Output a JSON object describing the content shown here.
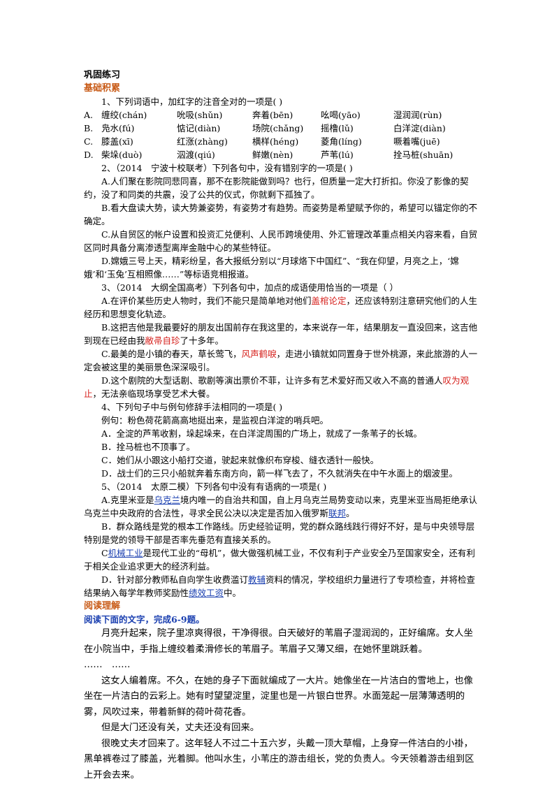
{
  "headings": {
    "consolidate": "巩固练习",
    "basic": "基础积累",
    "reading": "阅读理解",
    "reading_prompt": "阅读下面的文字，完成6-9题。"
  },
  "q1": {
    "stem": "1、下列词语中，加红字的注音全对的一项是(     )",
    "rows": [
      [
        "",
        "缠绞(chán)",
        "吮吸(shǔn)",
        "奔着(bēn)",
        "吆喝(yāo)",
        "湿润润(rùn)"
      ],
      [
        "B.",
        "凫水(fú)",
        "惦记(diàn)",
        "场院(chǎng)",
        "摇橹(lǔ)",
        "白洋淀(diàn)"
      ],
      [
        "C.",
        "膝盖(xī)",
        "红涨(zhàng)",
        "横样(héng)",
        "菱角(líng)",
        "噘着嘴(juē)"
      ],
      [
        "D.",
        "柴垛(duò)",
        "泅渡(qiú)",
        "鲜嫩(nèn)",
        "芦苇(lú)",
        "拴马桩(shuān)"
      ]
    ],
    "a_prefix": "A."
  },
  "q2": {
    "stem": "2、（2014　宁波十校联考）下列各句中，没有错别字的一项是(     )",
    "A": "A.人们聚在影院同悲同喜，那不在影院能做到吗？也行，但质量一定大打折扣。你没了影像的契约，没了和同类的共震，没了公共的仪式，你就剩下孤独了。",
    "B": "B.看大盘读大势，读大势兼姿势，有姿势才有趋势。而姿势是希望赋予你的，希望可以锚定你的不确定。",
    "C": "C.从自贸区的帐户设置和投资汇兑便利、人民币跨境使用、外汇管理改革重点相关内容来看，自贸区同时具备分离渗透型离岸金融中心的某些特征。",
    "D": "D.嫦娥三号上天，精彩纷呈，各大报纸分别以“月球烙下中国红”、“我在仰望，月亮之上，‘嫦娥’和‘玉兔’互相照像……”等标语竞相报道。"
  },
  "q3": {
    "stem": "3、（2014　大纲全国高考）下列各句中，加点的成语使用恰当的一项是（      ）",
    "A1": "A.在评价某些历史人物时，我们不能只是简单地对他们",
    "A_red": "盖棺论定",
    "A2": "，还应该特别注意研究他们的人生经历和思想变化轨迹。",
    "B1": "B.这把吉他是我最要好的朋友出国前存在我这里的，本来说存一年，结果朋友一直没回来，这吉他到现在已经由我",
    "B_red": "敝帚自珍",
    "B2": "了十多年。",
    "C1": "C.最美的是小镇的春天，草长莺飞，",
    "C_red": "风声鹤唳",
    "C2": "，走进小镇就如同置身于世外桃源，来此旅游的人一定会被这里的美丽景色深深吸引。",
    "D1": "D.这个剧院的大型话剧、歌剧等演出票价不菲，让许多有艺术爱好而又收入不高的普通人",
    "D_red": "叹为观止",
    "D2": "，无法亲临现场享受艺术大餐。"
  },
  "q4": {
    "stem": "4、下列句子中与例句修辞手法相同的一项是(      )",
    "example": "例句：粉色荷花箭高高地挺出来，是监视白洋淀的哨兵吧。",
    "A": "A．全淀的芦苇收割，垛起垛来，在白洋淀周围的广场上，就成了一条苇子的长城。",
    "B": "B．拴马桩也不顶事了。",
    "C": "C．她们从小跟这小船打交道，驶起来就像织布穿梭、缝衣透针一般快。",
    "D": "D．战士们的三只小船就奔着东南方向，箭一样飞去了，不久就消失在中午水面上的烟波里。"
  },
  "q5": {
    "stem": "5、（2014　太原二模）下列各句中没有有语病的一项是(      )",
    "A1": "A.克里米亚是",
    "A_link1": "乌克兰",
    "A2": "境内唯一的自治共和国，自上月乌克兰局势变动以来，克里米亚当局拒绝承认乌克兰中央政府的合法性，寻求全民公决以决定是否加入俄罗斯",
    "A_link2": "联邦",
    "A3": "。",
    "B": "B．群众路线是党的根本工作路线。历史经验证明，党的群众路线践行得好不好，是与中央领导层特别是党的领导干部是否率先垂范有直接关系的。",
    "C1": "C",
    "C_link": "机械工业",
    "C2": "是现代工业的“母机”，做大做强机械工业，不仅有利于产业安全乃至国家安全，还有利于相关企业追求更大的经济利益。",
    "D1": "D．针对部分教师私自向学生收费滥订",
    "D_link1": "教辅",
    "D2": "资料的情况，学校组织力量进行了专项检查，并将检查结果纳入每学年教师奖励性",
    "D_link2": "绩效工资",
    "D3": "中。"
  },
  "passage": {
    "p1": "月亮升起来，院子里凉爽得很，干净得很。白天破好的苇眉子湿润润的，正好编席。女人坐在小院当中，手指上缠绞着柔滑修长的苇眉子。苇眉子又薄又细，在她怀里跳跃着。",
    "ellipsis": "……　……",
    "p2": "这女人编着席。不久，在她的身子下面就编成了一大片。她像坐在一片洁白的雪地上，也像坐在一片洁白的云彩上。她有时望望淀里，淀里也是一片银白世界。水面笼起一层薄薄透明的雾，风吹过来，带着新鲜的荷叶荷花香。",
    "p3": "但是大门还没有关，丈夫还没有回来。",
    "p4": "很晚丈夫才回来了。这年轻人不过二十五六岁，头戴一顶大草帽，上身穿一件洁白的小褂，黑单裤卷过了膝盖，光着脚。他叫水生，小苇庄的游击组长，党的负责人。今天领着游击组到区上开会去来。"
  }
}
